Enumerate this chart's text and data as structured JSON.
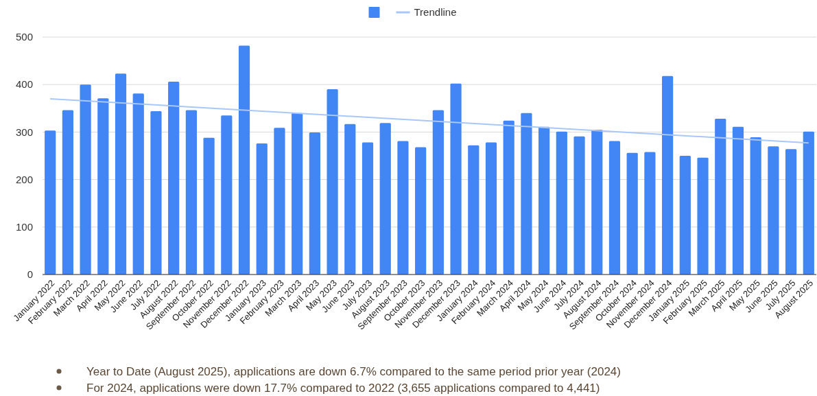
{
  "chart_data": {
    "type": "bar",
    "categories": [
      "January 2022",
      "February 2022",
      "March 2022",
      "April 2022",
      "May 2022",
      "June 2022",
      "July 2022",
      "August 2022",
      "September 2022",
      "October 2022",
      "November 2022",
      "December 2022",
      "January 2023",
      "February 2023",
      "March 2023",
      "April 2023",
      "May 2023",
      "June 2023",
      "July 2023",
      "August 2023",
      "September 2023",
      "October 2023",
      "November 2023",
      "December 2023",
      "January 2024",
      "February 2024",
      "March 2024",
      "April 2024",
      "May 2024",
      "June 2024",
      "July 2024",
      "August 2024",
      "September 2024",
      "October 2024",
      "November 2024",
      "December 2024",
      "January 2025",
      "February 2025",
      "March 2025",
      "April 2025",
      "May 2025",
      "June 2025",
      "July 2025",
      "August 2025"
    ],
    "series": [
      {
        "color": "#4285f4",
        "values": [
          303,
          346,
          400,
          371,
          423,
          381,
          344,
          406,
          346,
          288,
          335,
          482,
          276,
          309,
          340,
          299,
          390,
          317,
          278,
          319,
          281,
          268,
          346,
          402,
          272,
          278,
          324,
          340,
          311,
          301,
          291,
          305,
          281,
          256,
          258,
          418,
          250,
          246,
          328,
          311,
          289,
          270,
          264,
          301
        ]
      },
      {
        "name": "Trendline",
        "type": "line",
        "color": "#a8c7fa",
        "x": [
          "January 2022",
          "August 2025"
        ],
        "values": [
          370,
          277
        ]
      }
    ],
    "ylim": [
      0,
      500
    ],
    "yticks": [
      0,
      100,
      200,
      300,
      400,
      500
    ],
    "grid": "y",
    "legend": "top",
    "annotations": [
      "Year to Date (August 2025), applications are down 6.7% compared to the same period prior year (2024)",
      "For 2024, applications were down 17.7% compared to 2022 (3,655 applications compared to 4,441)"
    ]
  }
}
